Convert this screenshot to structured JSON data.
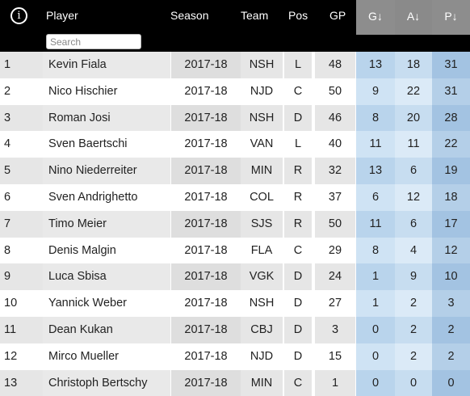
{
  "header": {
    "info_icon_label": "i",
    "columns": {
      "player": "Player",
      "season": "Season",
      "team": "Team",
      "pos": "Pos",
      "gp": "GP",
      "g": "G↓",
      "a": "A↓",
      "p": "P↓"
    }
  },
  "search": {
    "placeholder": "Search",
    "value": ""
  },
  "rows": [
    {
      "rank": "1",
      "player": "Kevin Fiala",
      "season": "2017-18",
      "team": "NSH",
      "pos": "L",
      "gp": "48",
      "g": "13",
      "a": "18",
      "p": "31"
    },
    {
      "rank": "2",
      "player": "Nico Hischier",
      "season": "2017-18",
      "team": "NJD",
      "pos": "C",
      "gp": "50",
      "g": "9",
      "a": "22",
      "p": "31"
    },
    {
      "rank": "3",
      "player": "Roman Josi",
      "season": "2017-18",
      "team": "NSH",
      "pos": "D",
      "gp": "46",
      "g": "8",
      "a": "20",
      "p": "28"
    },
    {
      "rank": "4",
      "player": "Sven Baertschi",
      "season": "2017-18",
      "team": "VAN",
      "pos": "L",
      "gp": "40",
      "g": "11",
      "a": "11",
      "p": "22"
    },
    {
      "rank": "5",
      "player": "Nino Niederreiter",
      "season": "2017-18",
      "team": "MIN",
      "pos": "R",
      "gp": "32",
      "g": "13",
      "a": "6",
      "p": "19"
    },
    {
      "rank": "6",
      "player": "Sven Andrighetto",
      "season": "2017-18",
      "team": "COL",
      "pos": "R",
      "gp": "37",
      "g": "6",
      "a": "12",
      "p": "18"
    },
    {
      "rank": "7",
      "player": "Timo Meier",
      "season": "2017-18",
      "team": "SJS",
      "pos": "R",
      "gp": "50",
      "g": "11",
      "a": "6",
      "p": "17"
    },
    {
      "rank": "8",
      "player": "Denis Malgin",
      "season": "2017-18",
      "team": "FLA",
      "pos": "C",
      "gp": "29",
      "g": "8",
      "a": "4",
      "p": "12"
    },
    {
      "rank": "9",
      "player": "Luca Sbisa",
      "season": "2017-18",
      "team": "VGK",
      "pos": "D",
      "gp": "24",
      "g": "1",
      "a": "9",
      "p": "10"
    },
    {
      "rank": "10",
      "player": "Yannick Weber",
      "season": "2017-18",
      "team": "NSH",
      "pos": "D",
      "gp": "27",
      "g": "1",
      "a": "2",
      "p": "3"
    },
    {
      "rank": "11",
      "player": "Dean Kukan",
      "season": "2017-18",
      "team": "CBJ",
      "pos": "D",
      "gp": "3",
      "g": "0",
      "a": "2",
      "p": "2"
    },
    {
      "rank": "12",
      "player": "Mirco Mueller",
      "season": "2017-18",
      "team": "NJD",
      "pos": "D",
      "gp": "15",
      "g": "0",
      "a": "2",
      "p": "2"
    },
    {
      "rank": "13",
      "player": "Christoph Bertschy",
      "season": "2017-18",
      "team": "MIN",
      "pos": "C",
      "gp": "1",
      "g": "0",
      "a": "0",
      "p": "0"
    }
  ],
  "colors": {
    "header_bg": "#000000",
    "sorted_header_bg": "#8c8c8c",
    "row_shade": "#e6e6e6",
    "g_cell": "#cfe3f4",
    "a_cell": "#dbeaf7",
    "p_cell": "#b4cfe8"
  }
}
